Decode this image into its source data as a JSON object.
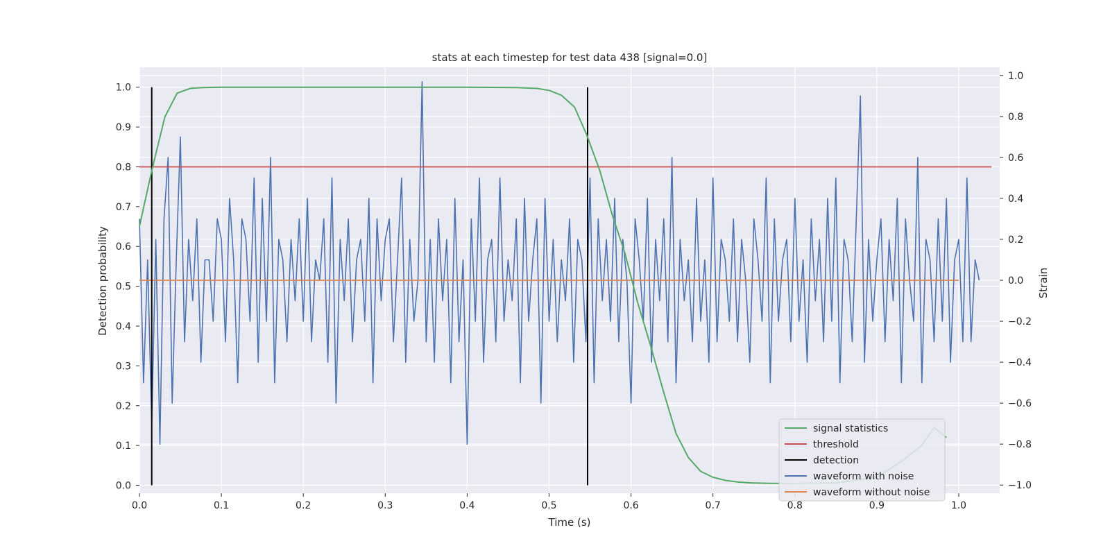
{
  "chart_data": {
    "type": "line",
    "title": "stats at each timestep for test data 438 [signal=0.0]",
    "xlabel": "Time (s)",
    "ylabel": "Detection probability",
    "y2label": "Strain",
    "xlim": [
      0.0,
      1.05
    ],
    "ylim": [
      -0.02,
      1.05
    ],
    "y2lim": [
      -1.04,
      1.04
    ],
    "x_ticks": [
      0.0,
      0.1,
      0.2,
      0.3,
      0.4,
      0.5,
      0.6,
      0.7,
      0.8,
      0.9,
      1.0
    ],
    "x_tick_labels": [
      "0.0",
      "0.1",
      "0.2",
      "0.3",
      "0.4",
      "0.5",
      "0.6",
      "0.7",
      "0.8",
      "0.9",
      "1.0"
    ],
    "y_ticks": [
      0.0,
      0.1,
      0.2,
      0.3,
      0.4,
      0.5,
      0.6,
      0.7,
      0.8,
      0.9,
      1.0
    ],
    "y_tick_labels": [
      "0.0",
      "0.1",
      "0.2",
      "0.3",
      "0.4",
      "0.5",
      "0.6",
      "0.7",
      "0.8",
      "0.9",
      "1.0"
    ],
    "y2_ticks": [
      1.0,
      0.8,
      0.6,
      0.4,
      0.2,
      0.0,
      -0.2,
      -0.4,
      -0.6,
      -0.8,
      -1.0
    ],
    "y2_tick_labels": [
      "1.0",
      "0.8",
      "0.6",
      "0.4",
      "0.2",
      "0.0",
      "−0.2",
      "−0.4",
      "−0.6",
      "−0.8",
      "−1.0"
    ],
    "grid": true,
    "legend_position": "lower-right",
    "series": [
      {
        "name": "signal statistics",
        "color": "#55a868",
        "axis": "left",
        "x": [
          0.0,
          0.015,
          0.031,
          0.046,
          0.062,
          0.077,
          0.1,
          0.2,
          0.3,
          0.4,
          0.46,
          0.485,
          0.5,
          0.515,
          0.531,
          0.546,
          0.562,
          0.577,
          0.593,
          0.608,
          0.624,
          0.639,
          0.655,
          0.67,
          0.685,
          0.7,
          0.716,
          0.731,
          0.747,
          0.77,
          0.8,
          0.85,
          0.9,
          0.93,
          0.955,
          0.97,
          0.985
        ],
        "values": [
          0.65,
          0.79,
          0.925,
          0.985,
          0.997,
          0.999,
          1.0,
          1.0,
          1.0,
          1.0,
          0.999,
          0.997,
          0.992,
          0.98,
          0.95,
          0.88,
          0.79,
          0.68,
          0.58,
          0.46,
          0.35,
          0.24,
          0.13,
          0.07,
          0.035,
          0.02,
          0.012,
          0.008,
          0.006,
          0.005,
          0.005,
          0.006,
          0.02,
          0.06,
          0.1,
          0.145,
          0.12
        ]
      },
      {
        "name": "threshold",
        "color": "#c44e52",
        "axis": "left",
        "x": [
          0.0,
          1.04
        ],
        "values": [
          0.8,
          0.8
        ]
      },
      {
        "name": "waveform with noise",
        "color": "#4c72b0",
        "axis": "right",
        "x_start": 0.0,
        "x_step": 0.005,
        "values": [
          0.3,
          -0.5,
          0.1,
          -0.7,
          0.2,
          -0.8,
          0.3,
          0.6,
          -0.6,
          0.1,
          0.7,
          -0.3,
          0.2,
          -0.1,
          0.3,
          -0.4,
          0.1,
          0.1,
          -0.2,
          0.3,
          0.2,
          -0.3,
          0.4,
          0.1,
          -0.5,
          0.3,
          0.2,
          -0.2,
          0.5,
          -0.4,
          0.4,
          -0.2,
          0.6,
          -0.5,
          0.2,
          0.1,
          -0.3,
          0.2,
          -0.1,
          0.3,
          -0.2,
          0.4,
          -0.3,
          0.1,
          0.0,
          0.3,
          -0.4,
          0.5,
          -0.6,
          0.2,
          -0.1,
          0.3,
          -0.3,
          0.1,
          0.2,
          -0.2,
          0.4,
          -0.5,
          0.3,
          -0.1,
          0.2,
          0.3,
          -0.3,
          0.1,
          0.5,
          -0.4,
          0.2,
          -0.2,
          0.0,
          0.97,
          -0.3,
          0.2,
          -0.4,
          0.3,
          -0.1,
          0.2,
          -0.5,
          0.4,
          -0.3,
          0.1,
          -0.8,
          0.3,
          -0.2,
          0.5,
          -0.4,
          0.1,
          0.2,
          -0.3,
          0.5,
          -0.2,
          0.1,
          -0.1,
          0.3,
          -0.5,
          0.4,
          -0.2,
          0.1,
          0.3,
          -0.6,
          0.4,
          -0.2,
          0.2,
          -0.3,
          0.1,
          -0.1,
          0.3,
          -0.4,
          0.2,
          0.1,
          -0.3,
          0.5,
          -0.5,
          0.3,
          -0.1,
          0.2,
          -0.2,
          0.4,
          -0.3,
          0.2,
          0.0,
          -0.6,
          0.3,
          0.1,
          -0.2,
          0.4,
          -0.4,
          0.2,
          -0.1,
          0.3,
          -0.3,
          0.6,
          -0.5,
          0.2,
          -0.1,
          0.1,
          -0.3,
          0.4,
          -0.2,
          0.1,
          -0.4,
          0.5,
          -0.3,
          0.2,
          0.1,
          -0.2,
          0.3,
          -0.3,
          0.2,
          0.0,
          -0.4,
          0.3,
          0.1,
          -0.2,
          0.5,
          -0.5,
          0.3,
          -0.2,
          0.1,
          0.2,
          -0.3,
          0.4,
          -0.2,
          0.1,
          -0.4,
          0.3,
          -0.1,
          0.2,
          -0.3,
          0.4,
          -0.2,
          0.5,
          -0.5,
          0.2,
          0.1,
          -0.3,
          0.3,
          0.9,
          -0.4,
          0.2,
          -0.2,
          0.1,
          0.3,
          -0.3,
          0.2,
          -0.1,
          0.4,
          -0.5,
          0.3,
          0.0,
          -0.2,
          0.6,
          -0.5,
          0.2,
          0.1,
          -0.3,
          0.3,
          -0.2,
          0.4,
          -0.4,
          0.1,
          0.2,
          -0.3,
          0.5,
          -0.3,
          0.1,
          0.0
        ],
        "note_peaks": "y2 range approx -0.95 to 1.0"
      },
      {
        "name": "waveform without noise",
        "color": "#dd8452",
        "axis": "right",
        "x": [
          0.0,
          1.0
        ],
        "values": [
          0.0,
          0.0
        ]
      },
      {
        "name": "detection",
        "color": "#000000",
        "axis": "left",
        "vlines": [
          0.015,
          0.547
        ],
        "ymin": 0.0,
        "ymax": 1.0
      }
    ]
  }
}
